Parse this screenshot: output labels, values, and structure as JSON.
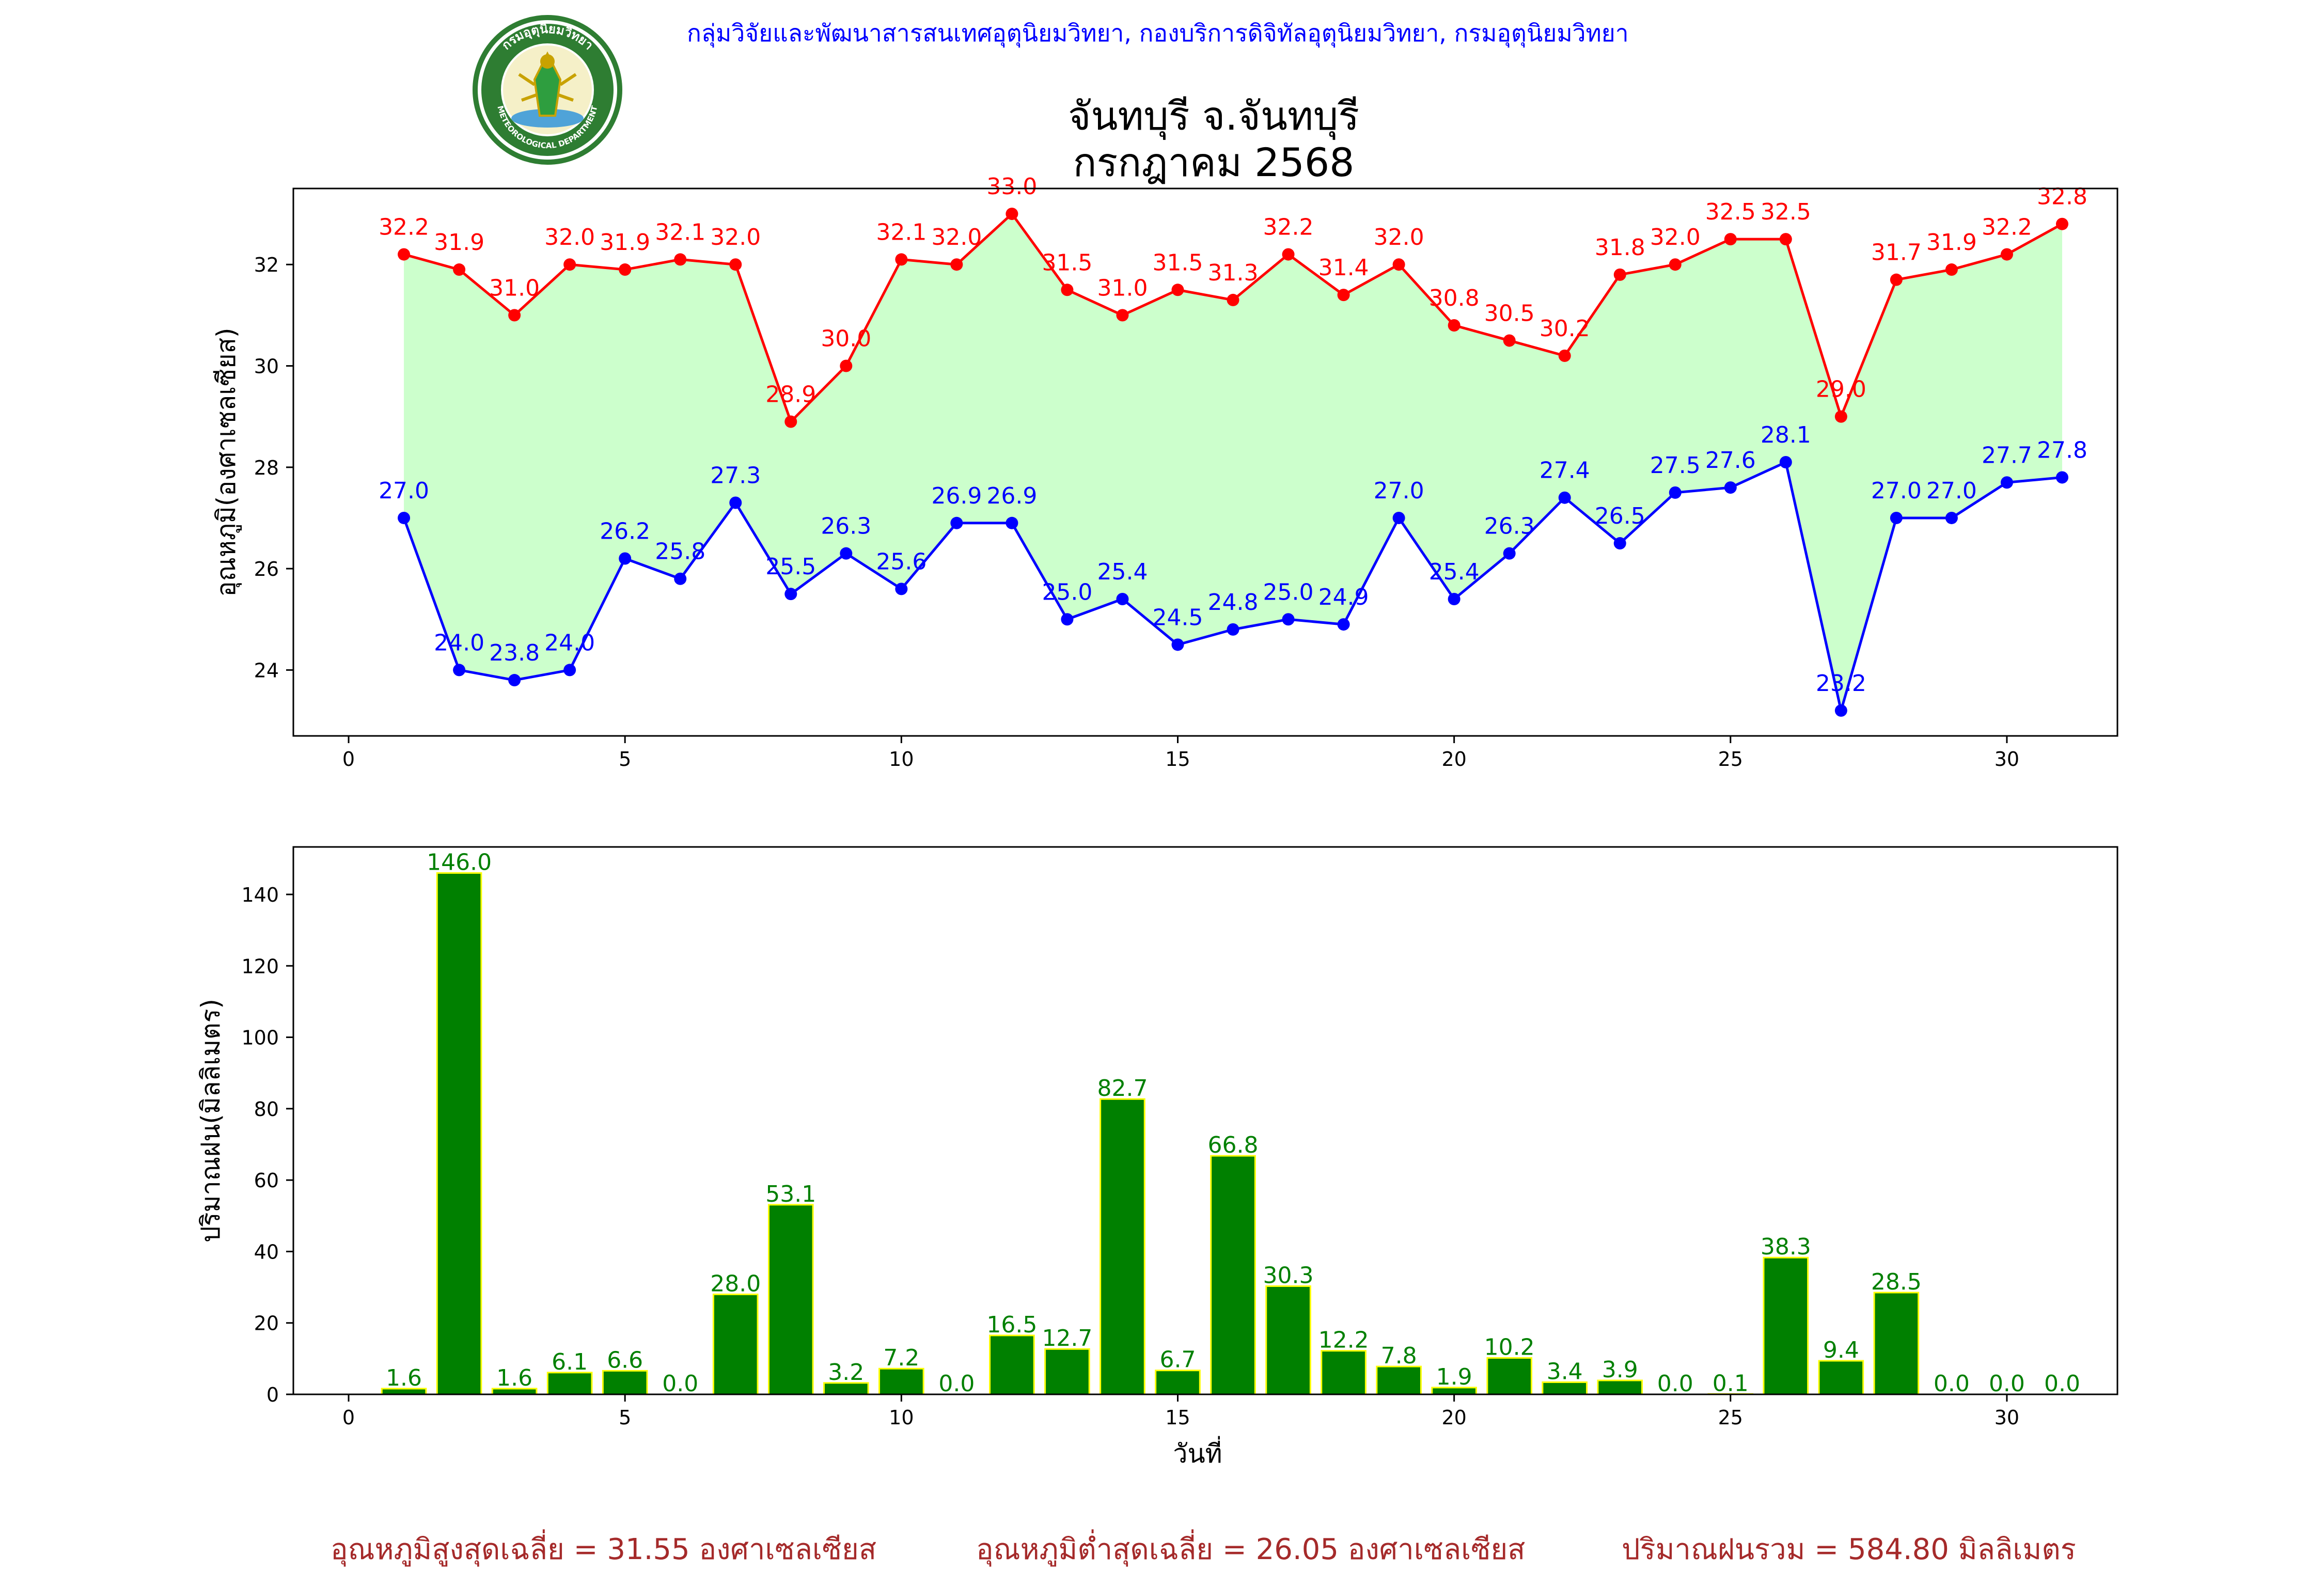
{
  "header": {
    "agency": "กลุ่มวิจัยและพัฒนาสารสนเทศอุตุนิยมวิทยา, กองบริการดิจิทัลอุตุนิยมวิทยา, กรมอุตุนิยมวิทยา",
    "logo_text_top": "กรมอุตุนิยมวิทยา",
    "logo_text_bottom": "METEOROLOGICAL DEPARTMENT"
  },
  "title": {
    "station": "จันทบุรี จ.จันทบุรี",
    "month": "กรกฎาคม 2568"
  },
  "colors": {
    "max_line": "#ff0000",
    "min_line": "#0000ff",
    "fill": "#ccffcc",
    "bar": "#008000",
    "bar_edge": "#ffff00",
    "bar_label": "#008000",
    "summary": "#a52a2a",
    "header": "#0000ff"
  },
  "chart_data": [
    {
      "type": "line",
      "ylabel": "อุณหภูมิ(องศาเซลเซียส)",
      "xlabel": "",
      "xlim": [
        -1,
        32
      ],
      "ylim": [
        22.7,
        33.5
      ],
      "xticks": [
        0,
        5,
        10,
        15,
        20,
        25,
        30
      ],
      "yticks": [
        24,
        26,
        28,
        30,
        32
      ],
      "grid": false,
      "fill_between": true,
      "x": [
        1,
        2,
        3,
        4,
        5,
        6,
        7,
        8,
        9,
        10,
        11,
        12,
        13,
        14,
        15,
        16,
        17,
        18,
        19,
        20,
        21,
        22,
        23,
        24,
        25,
        26,
        27,
        28,
        29,
        30,
        31
      ],
      "series": [
        {
          "values": [
            32.2,
            31.9,
            31.0,
            32.0,
            31.9,
            32.1,
            32.0,
            28.9,
            30.0,
            32.1,
            32.0,
            33.0,
            31.5,
            31.0,
            31.5,
            31.3,
            32.2,
            31.4,
            32.0,
            30.8,
            30.5,
            30.2,
            31.8,
            32.0,
            32.5,
            32.5,
            29.0,
            31.7,
            31.9,
            32.2,
            32.8
          ]
        },
        {
          "values": [
            27.0,
            24.0,
            23.8,
            24.0,
            26.2,
            25.8,
            27.3,
            25.5,
            26.3,
            25.6,
            26.9,
            26.9,
            25.0,
            25.4,
            24.5,
            24.8,
            25.0,
            24.9,
            27.0,
            25.4,
            26.3,
            27.4,
            26.5,
            27.5,
            27.6,
            28.1,
            23.2,
            27.0,
            27.0,
            27.7,
            27.8
          ]
        }
      ]
    },
    {
      "type": "bar",
      "ylabel": "ปริมาณฝน(มิลลิเมตร)",
      "xlabel": "วันที่",
      "xlim": [
        -1,
        32
      ],
      "ylim": [
        0,
        153.3
      ],
      "xticks": [
        0,
        5,
        10,
        15,
        20,
        25,
        30
      ],
      "yticks": [
        0,
        20,
        40,
        60,
        80,
        100,
        120,
        140
      ],
      "grid": false,
      "x": [
        1,
        2,
        3,
        4,
        5,
        6,
        7,
        8,
        9,
        10,
        11,
        12,
        13,
        14,
        15,
        16,
        17,
        18,
        19,
        20,
        21,
        22,
        23,
        24,
        25,
        26,
        27,
        28,
        29,
        30,
        31
      ],
      "values": [
        1.6,
        146.0,
        1.6,
        6.1,
        6.6,
        0.0,
        28.0,
        53.1,
        3.2,
        7.2,
        0.0,
        16.5,
        12.7,
        82.7,
        6.7,
        66.8,
        30.3,
        12.2,
        7.8,
        1.9,
        10.2,
        3.4,
        3.9,
        0.0,
        0.1,
        38.3,
        9.4,
        28.5,
        0.0,
        0.0,
        0.0
      ]
    }
  ],
  "summary": {
    "avg_max": "อุณหภูมิสูงสุดเฉลี่ย = 31.55 องศาเซลเซียส",
    "avg_min": "อุณหภูมิต่ำสุดเฉลี่ย = 26.05 องศาเซลเซียส",
    "total_rain": "ปริมาณฝนรวม = 584.80 มิลลิเมตร"
  }
}
